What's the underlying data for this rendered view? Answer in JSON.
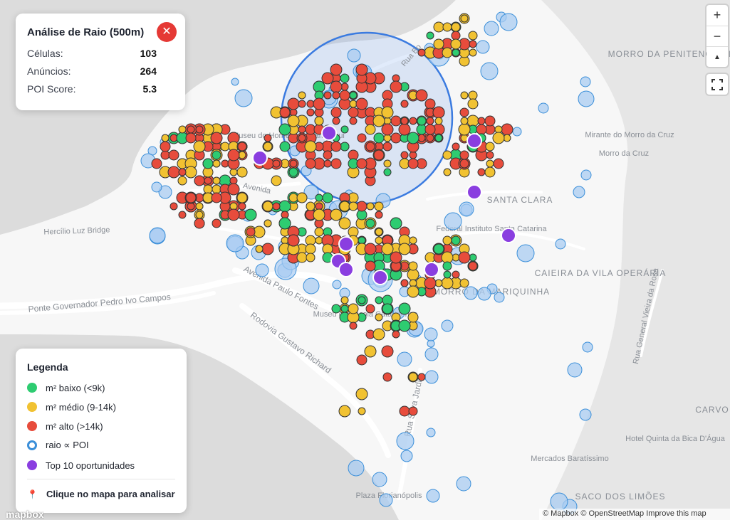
{
  "radius_panel": {
    "title": "Análise de Raio (500m)",
    "close_symbol": "✕",
    "stats": [
      {
        "label": "Células:",
        "value": "103"
      },
      {
        "label": "Anúncios:",
        "value": "264"
      },
      {
        "label": "POI Score:",
        "value": "5.3"
      }
    ]
  },
  "legend": {
    "title": "Legenda",
    "items": [
      {
        "label": "m² baixo (<9k)",
        "color": "#2ecc71",
        "style": "fill"
      },
      {
        "label": "m² médio (9-14k)",
        "color": "#f1c232",
        "style": "fill"
      },
      {
        "label": "m² alto (>14k)",
        "color": "#e74c3c",
        "style": "fill"
      },
      {
        "label": "raio ∝ POI",
        "color": "#3b8fd9",
        "style": "ring"
      },
      {
        "label": "Top 10 oportunidades",
        "color": "#8a3ee0",
        "style": "fill"
      }
    ],
    "hint": "Clique no mapa para analisar",
    "hint_icon": "pin-icon"
  },
  "controls": {
    "zoom_in": "+",
    "zoom_out": "−",
    "compass": "▲",
    "fullscreen_icon": "fullscreen-icon"
  },
  "attribution": "© Mapbox © OpenStreetMap Improve this map",
  "logo": "mapbox",
  "colors": {
    "low": "#2ecc71",
    "mid": "#f1c232",
    "high": "#e74c3c",
    "poi": "#a9ccf2",
    "top": "#8a3ee0",
    "radius": "#3b7be0"
  },
  "map_labels": [
    "Morro da Penitenciária",
    "Mirante do Morro da Cruz",
    "Morro da Cruz",
    "Santa Clara",
    "Federal Instituto Santa Catarina",
    "Caieira da Vila Operária",
    "Morro da Mariquinha",
    "Museu do Homem do Sambaqui",
    "Avenida",
    "Hercílio Luz Bridge",
    "Avenida Paulo Fontes",
    "Ponte Governador Pedro Ivo Campos",
    "Rodovia Gustavo Richard",
    "Museu da Escola Catarinense",
    "Rua Silva Jardim",
    "Rua General Vieira da Rosa",
    "Carvo",
    "Hotel Quinta da Bica D'Água",
    "Mercados Baratíssimo",
    "Saco dos Limões",
    "Plaza Florianópolis",
    "Rua Bo"
  ]
}
